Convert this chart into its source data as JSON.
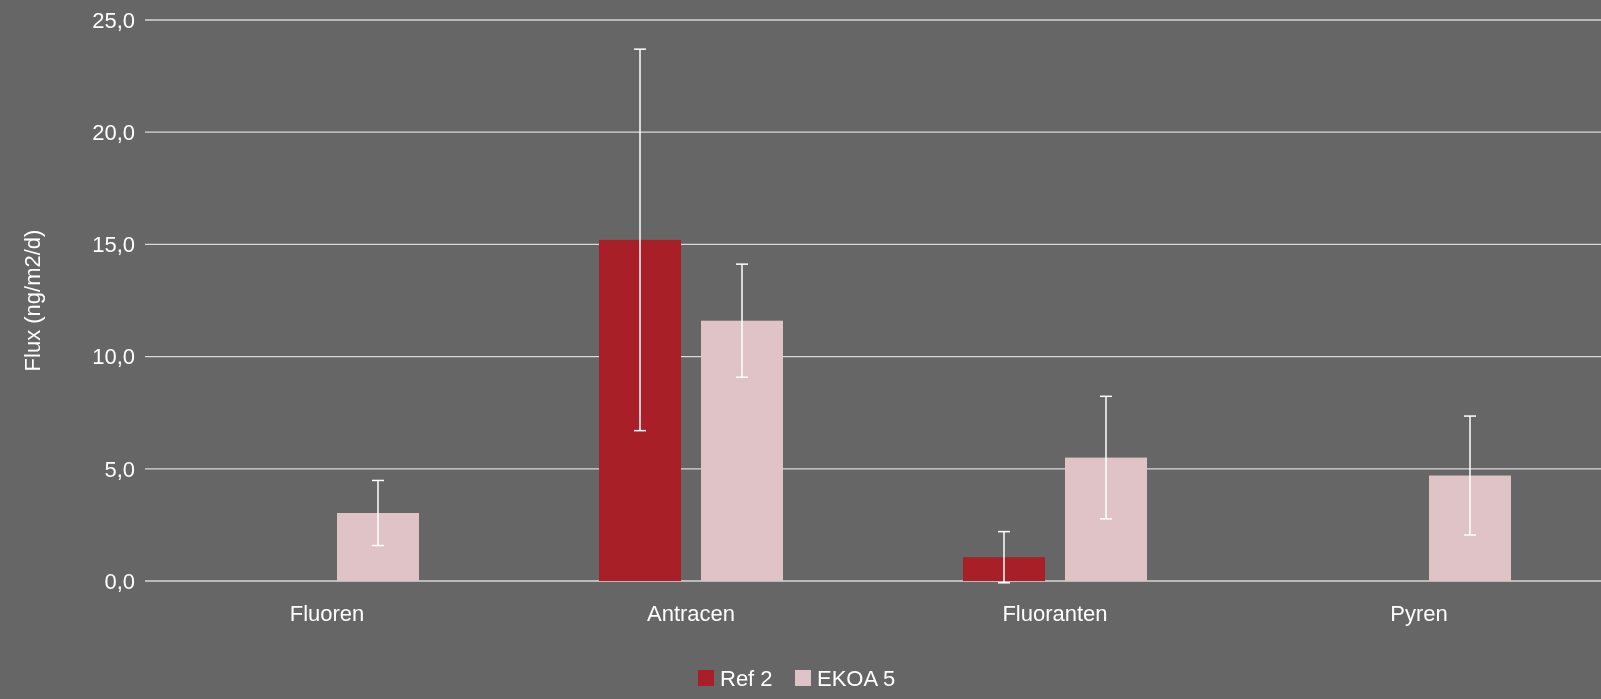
{
  "chart_data": {
    "type": "bar",
    "ylabel": "Flux (ng/m2/d)",
    "categories": [
      "Fluoren",
      "Antracen",
      "Fluoranten",
      "Pyren"
    ],
    "series": [
      {
        "name": "Ref 2",
        "color": "#a91f28",
        "values": [
          null,
          15.2,
          1.06,
          null
        ],
        "errors": [
          null,
          8.5,
          1.14,
          null
        ]
      },
      {
        "name": "EKOA 5",
        "color": "#e0c3c6",
        "values": [
          3.03,
          11.6,
          5.5,
          4.7
        ],
        "errors": [
          1.45,
          2.52,
          2.73,
          2.65
        ]
      }
    ],
    "ylim": [
      0,
      25
    ],
    "yticks": [
      {
        "value": 0,
        "label": "0,0"
      },
      {
        "value": 5,
        "label": "5,0"
      },
      {
        "value": 10,
        "label": "10,0"
      },
      {
        "value": 15,
        "label": "15,0"
      },
      {
        "value": 20,
        "label": "20,0"
      },
      {
        "value": 25,
        "label": "25,0"
      }
    ],
    "grid": "y",
    "legend": "bottom"
  }
}
